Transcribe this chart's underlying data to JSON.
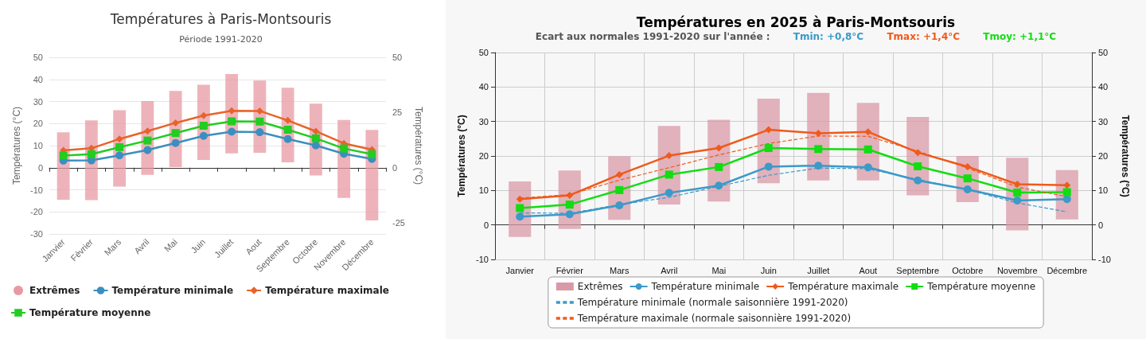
{
  "chart_data": [
    {
      "type": "line",
      "title": "Températures à Paris-Montsouris",
      "subtitle": "Période 1991-2020",
      "ylabel": "Températures (°C)",
      "y2label": "Températures (°C)",
      "categories": [
        "Janvier",
        "Février",
        "Mars",
        "Avril",
        "Mai",
        "Juin",
        "Juillet",
        "Aout",
        "Septembre",
        "Octobre",
        "Novembre",
        "Décembre"
      ],
      "series": [
        {
          "type": "bar",
          "name": "Extrêmes",
          "color": "#e89aa3",
          "base": [
            -14.5,
            -14.7,
            -8.6,
            -3.2,
            0.3,
            3.5,
            6.5,
            6.8,
            2.4,
            -3.5,
            -13.7,
            -23.9
          ],
          "values": [
            30.5,
            36.1,
            34.6,
            33.4,
            34.5,
            34.1,
            35.9,
            32.7,
            33.8,
            32.5,
            35.3,
            41.0
          ]
        },
        {
          "name": "Température minimale",
          "color": "#3a8fc0",
          "marker": "circle",
          "values": [
            3.2,
            3.3,
            5.6,
            8.0,
            11.2,
            14.4,
            16.3,
            16.1,
            13.0,
            10.1,
            6.3,
            4.0
          ]
        },
        {
          "name": "Température maximale",
          "color": "#e8632a",
          "marker": "diamond",
          "values": [
            7.8,
            8.8,
            13.0,
            16.6,
            20.3,
            23.6,
            25.8,
            25.7,
            21.4,
            16.5,
            11.0,
            8.2
          ]
        },
        {
          "name": "Température moyenne",
          "color": "#22cc22",
          "marker": "square",
          "values": [
            5.5,
            6.1,
            9.3,
            12.3,
            15.7,
            19.0,
            21.0,
            20.9,
            17.2,
            13.3,
            8.7,
            6.1
          ]
        }
      ],
      "ylim": [
        -30,
        50
      ],
      "yticks": [
        -30,
        -20,
        -10,
        0,
        10,
        20,
        30,
        40,
        50
      ],
      "y2lim": [
        -30,
        50
      ],
      "y2ticks": [
        -25,
        0,
        25,
        50
      ],
      "grid": "y",
      "legend": "bottom left"
    },
    {
      "type": "line",
      "title": "Températures en 2025 à Paris-Montsouris",
      "subtitle": "Ecart aux normales 1991-2020 sur l'année :",
      "annotations": [
        "Tmin: +0,8°C",
        "Tmax: +1,4°C",
        "Tmoy: +1,1°C"
      ],
      "ylabel": "Températures (°C)",
      "y2label": "Températures (°C)",
      "categories": [
        "Janvier",
        "Février",
        "Mars",
        "Avril",
        "Mai",
        "Juin",
        "Juillet",
        "Aout",
        "Septembre",
        "Octobre",
        "Novembre",
        "Décembre"
      ],
      "series": [
        {
          "type": "bar",
          "name": "Extrêmes",
          "color": "#d99aa8",
          "base": [
            -3.5,
            -1.2,
            1.5,
            5.9,
            6.8,
            12.1,
            12.9,
            12.9,
            8.6,
            6.6,
            -1.6,
            1.6
          ],
          "values": [
            16.1,
            17.0,
            18.4,
            22.8,
            23.7,
            24.5,
            25.4,
            22.5,
            22.7,
            13.4,
            21.1,
            14.3
          ]
        },
        {
          "name": "Température minimale",
          "color": "#3a9ac9",
          "marker": "circle",
          "values": [
            2.4,
            3.1,
            5.7,
            9.3,
            11.4,
            16.9,
            17.2,
            16.7,
            12.9,
            10.3,
            7.1,
            7.5
          ]
        },
        {
          "name": "Température maximale",
          "color": "#f05a1a",
          "marker": "diamond",
          "values": [
            7.5,
            8.6,
            14.6,
            20.1,
            22.3,
            27.6,
            26.6,
            27.0,
            21.0,
            16.9,
            11.8,
            11.5
          ]
        },
        {
          "name": "Température moyenne",
          "color": "#11dd11",
          "marker": "square",
          "values": [
            4.9,
            5.9,
            10.1,
            14.6,
            16.8,
            22.3,
            22.0,
            21.9,
            17.0,
            13.5,
            9.4,
            9.5
          ]
        },
        {
          "name": "Température minimale (normale saisonnière 1991-2020)",
          "color": "#3a9ac9",
          "marker": "none",
          "line_style": "dashed",
          "values": [
            3.5,
            3.4,
            5.9,
            8.0,
            11.2,
            14.4,
            16.5,
            16.3,
            13.2,
            10.2,
            6.4,
            3.8
          ]
        },
        {
          "name": "Température maximale (normale saisonnière 1991-2020)",
          "color": "#f05a1a",
          "marker": "none",
          "line_style": "dashed",
          "values": [
            7.8,
            8.8,
            13.0,
            16.6,
            20.3,
            23.6,
            25.8,
            25.7,
            21.4,
            16.5,
            11.0,
            8.2
          ]
        }
      ],
      "ylim": [
        -10,
        50
      ],
      "yticks": [
        -10,
        0,
        10,
        20,
        30,
        40,
        50
      ],
      "y2lim": [
        -10,
        50
      ],
      "y2ticks": [
        -10,
        0,
        10,
        20,
        30,
        40,
        50
      ],
      "grid": true,
      "legend": "bottom"
    }
  ]
}
